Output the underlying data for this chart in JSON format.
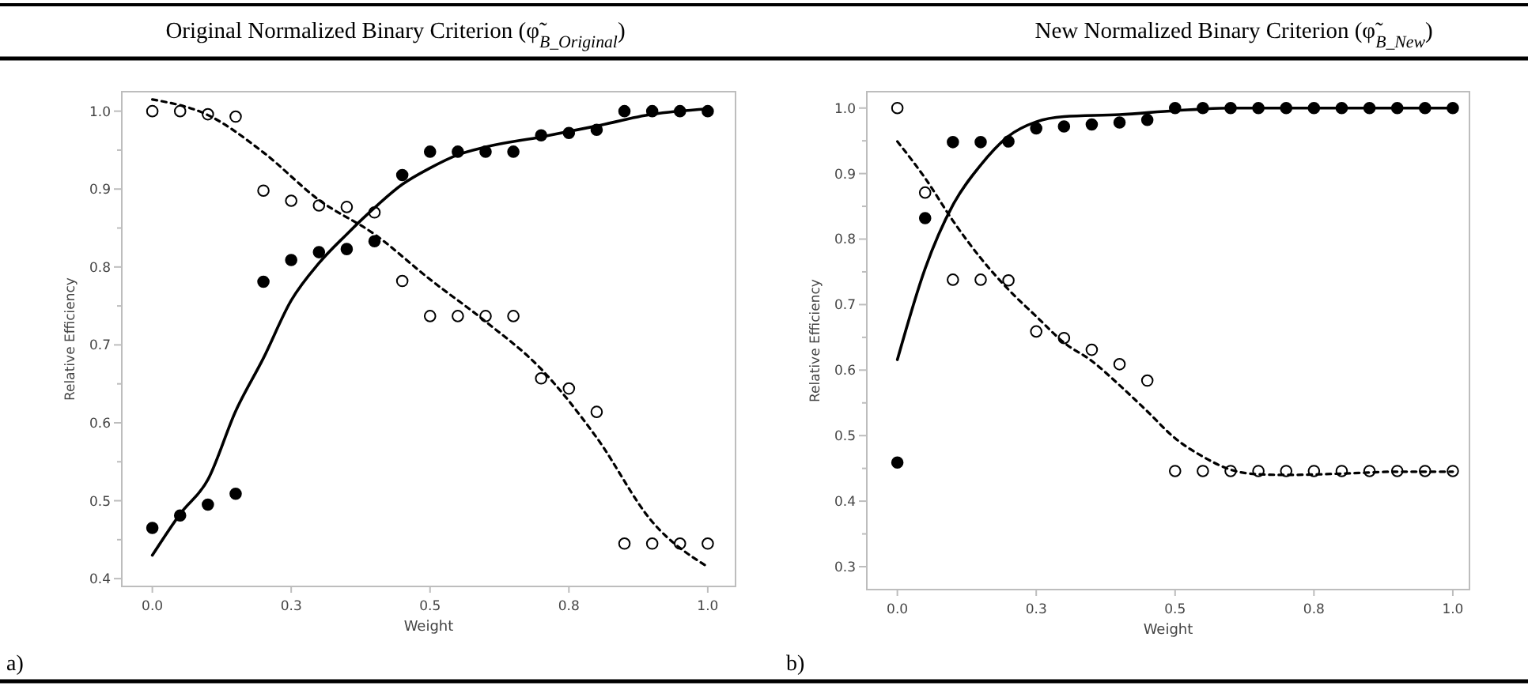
{
  "chart_data": [
    {
      "type": "scatter",
      "title": "Original Normalized Binary Criterion (φ̃$_{B_Original}$)",
      "xlabel": "Weight",
      "ylabel": "Relative Efficiency",
      "annotations": [
        "a)"
      ],
      "x": [
        0,
        0.05,
        0.1,
        0.15,
        0.2,
        0.25,
        0.3,
        0.35,
        0.4,
        0.45,
        0.5,
        0.55,
        0.6,
        0.65,
        0.7,
        0.75,
        0.8,
        0.85,
        0.9,
        0.95,
        1.0
      ],
      "xlim": [
        -0.055,
        1.05
      ],
      "xticks": [
        {
          "value": 0,
          "label": "0.0"
        },
        {
          "value": 0.25,
          "label": "0.3"
        },
        0.5,
        {
          "value": 0.75,
          "label": "0.8"
        },
        {
          "value": 1,
          "label": "1.0"
        }
      ],
      "ylim": [
        0.39,
        1.025
      ],
      "yticks": [
        0.4,
        {
          "value": 0.45,
          "label": null
        },
        0.5,
        {
          "value": 0.55,
          "label": null
        },
        0.6,
        {
          "value": 0.65,
          "label": null
        },
        0.7,
        {
          "value": 0.75,
          "label": null
        },
        0.8,
        {
          "value": 0.85,
          "label": null
        },
        0.9,
        {
          "value": 0.95,
          "label": null
        },
        {
          "value": 1,
          "label": "1.0"
        }
      ],
      "grid": false,
      "marker": "circle",
      "series": [
        {
          "color": "#000000",
          "values": [
            0.465,
            0.481,
            0.495,
            0.509,
            0.781,
            0.809,
            0.819,
            0.823,
            0.833,
            0.918,
            0.948,
            0.948,
            0.948,
            0.948,
            0.969,
            0.972,
            0.976,
            1.0,
            1.0,
            1.0,
            1.0
          ]
        },
        {
          "color": "#ffffff",
          "values": [
            1.0,
            1.0,
            0.996,
            0.993,
            0.898,
            0.885,
            0.879,
            0.877,
            0.87,
            0.782,
            0.737,
            0.737,
            0.737,
            0.737,
            0.657,
            0.644,
            0.614,
            0.445,
            0.445,
            0.445,
            0.445
          ]
        },
        {
          "type": "line",
          "color": "#000000",
          "line_style": "solid",
          "marker": "none",
          "x": [
            0,
            0.05,
            0.1,
            0.15,
            0.2,
            0.25,
            0.3,
            0.35,
            0.4,
            0.45,
            0.5,
            0.55,
            0.6,
            0.7,
            0.8,
            0.9,
            1.0
          ],
          "values": [
            0.43,
            0.483,
            0.527,
            0.615,
            0.683,
            0.757,
            0.805,
            0.842,
            0.876,
            0.906,
            0.927,
            0.944,
            0.954,
            0.967,
            0.981,
            0.996,
            1.003
          ]
        },
        {
          "type": "line",
          "color": "#000000",
          "line_style": "dashed",
          "marker": "none",
          "x": [
            0,
            0.1,
            0.2,
            0.3,
            0.4,
            0.5,
            0.6,
            0.7,
            0.8,
            0.9,
            1.0
          ],
          "values": [
            1.015,
            0.995,
            0.947,
            0.886,
            0.842,
            0.784,
            0.73,
            0.669,
            0.581,
            0.473,
            0.415
          ]
        }
      ]
    },
    {
      "type": "scatter",
      "title": "New Normalized Binary Criterion (φ̃$_{B_New}$)",
      "xlabel": "Weight",
      "ylabel": "Relative Efficiency",
      "annotations": [
        "b)"
      ],
      "x": [
        0,
        0.05,
        0.1,
        0.15,
        0.2,
        0.25,
        0.3,
        0.35,
        0.4,
        0.45,
        0.5,
        0.55,
        0.6,
        0.65,
        0.7,
        0.75,
        0.8,
        0.85,
        0.9,
        0.95,
        1.0
      ],
      "xlim": [
        -0.055,
        1.03
      ],
      "xticks": [
        {
          "value": 0,
          "label": "0.0"
        },
        {
          "value": 0.25,
          "label": "0.3"
        },
        0.5,
        {
          "value": 0.75,
          "label": "0.8"
        },
        {
          "value": 1,
          "label": "1.0"
        }
      ],
      "ylim": [
        0.265,
        1.025
      ],
      "yticks": [
        0.3,
        {
          "value": 0.35,
          "label": null
        },
        0.4,
        {
          "value": 0.45,
          "label": null
        },
        0.5,
        {
          "value": 0.55,
          "label": null
        },
        0.6,
        {
          "value": 0.65,
          "label": null
        },
        0.7,
        {
          "value": 0.75,
          "label": null
        },
        0.8,
        {
          "value": 0.85,
          "label": null
        },
        0.9,
        {
          "value": 0.95,
          "label": null
        },
        {
          "value": 1,
          "label": "1.0"
        }
      ],
      "grid": false,
      "marker": "circle",
      "series": [
        {
          "color": "#000000",
          "values": [
            0.459,
            0.832,
            0.948,
            0.948,
            0.949,
            0.969,
            0.972,
            0.975,
            0.978,
            0.982,
            1.0,
            1.0,
            1.0,
            1.0,
            1.0,
            1.0,
            1.0,
            1.0,
            1.0,
            1.0,
            1.0
          ]
        },
        {
          "color": "#ffffff",
          "values": [
            1.0,
            0.871,
            0.738,
            0.738,
            0.737,
            0.659,
            0.649,
            0.631,
            0.609,
            0.584,
            0.446,
            0.446,
            0.446,
            0.446,
            0.446,
            0.446,
            0.446,
            0.446,
            0.446,
            0.446,
            0.446
          ]
        },
        {
          "type": "line",
          "color": "#000000",
          "line_style": "solid",
          "marker": "none",
          "x": [
            0,
            0.05,
            0.1,
            0.15,
            0.2,
            0.25,
            0.3,
            0.4,
            0.5,
            0.6,
            0.8,
            1.0
          ],
          "values": [
            0.616,
            0.755,
            0.852,
            0.913,
            0.957,
            0.979,
            0.987,
            0.99,
            0.996,
            1.0,
            1.0,
            1.0
          ]
        },
        {
          "type": "line",
          "color": "#000000",
          "line_style": "dashed",
          "marker": "none",
          "x": [
            0,
            0.05,
            0.1,
            0.15,
            0.2,
            0.25,
            0.3,
            0.35,
            0.4,
            0.45,
            0.5,
            0.55,
            0.6,
            0.65,
            0.7,
            0.8,
            0.9,
            1.0
          ],
          "values": [
            0.949,
            0.893,
            0.828,
            0.771,
            0.723,
            0.682,
            0.642,
            0.614,
            0.577,
            0.537,
            0.496,
            0.468,
            0.448,
            0.441,
            0.44,
            0.442,
            0.445,
            0.445
          ]
        }
      ]
    }
  ]
}
